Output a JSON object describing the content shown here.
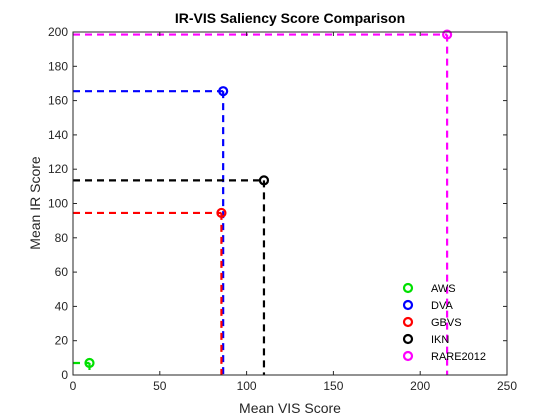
{
  "chart_data": {
    "type": "scatter",
    "title": "IR-VIS Saliency Score Comparison",
    "xlabel": "Mean VIS Score",
    "ylabel": "Mean IR Score",
    "xlim": [
      0,
      250
    ],
    "ylim": [
      0,
      200
    ],
    "xticks": [
      0,
      50,
      100,
      150,
      200,
      250
    ],
    "yticks": [
      0,
      20,
      40,
      60,
      80,
      100,
      120,
      140,
      160,
      180,
      200
    ],
    "grid": false,
    "legend_position": "bottom-right",
    "drop_lines": "dashed",
    "series": [
      {
        "name": "AWS",
        "x": 9.5,
        "y": 7,
        "color": "#00e000"
      },
      {
        "name": "DVA",
        "x": 86.5,
        "y": 165.5,
        "color": "#0000ff"
      },
      {
        "name": "GBVS",
        "x": 85.5,
        "y": 94.5,
        "color": "#ff0000"
      },
      {
        "name": "IKN",
        "x": 110,
        "y": 113.5,
        "color": "#000000"
      },
      {
        "name": "RARE2012",
        "x": 215.5,
        "y": 198.5,
        "color": "#ff00ff"
      }
    ]
  }
}
